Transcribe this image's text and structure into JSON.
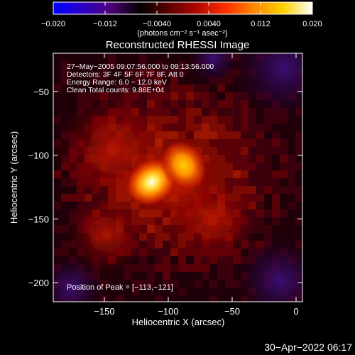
{
  "colorbar": {
    "ticks": [
      {
        "value": -0.02,
        "label": "−0.020"
      },
      {
        "value": -0.012,
        "label": "−0.012"
      },
      {
        "value": -0.004,
        "label": "−0.0040"
      },
      {
        "value": 0.004,
        "label": "0.0040"
      },
      {
        "value": 0.012,
        "label": "0.012"
      },
      {
        "value": 0.02,
        "label": "0.020"
      }
    ],
    "range": [
      -0.02,
      0.02
    ],
    "unit_label": "(photons cm⁻² s⁻¹ asec⁻²)",
    "colors": [
      "#0000ff",
      "#2b00c8",
      "#4f0078",
      "#000000",
      "#5a0000",
      "#b00800",
      "#ff3000",
      "#ff8a00",
      "#ffd100",
      "#ffffff"
    ]
  },
  "chart_data": {
    "type": "heatmap",
    "title": "Reconstructed RHESSI Image",
    "xlabel": "Heliocentric X (arcsec)",
    "ylabel": "Heliocentric Y (arcsec)",
    "xlim": [
      -190,
      5
    ],
    "ylim": [
      -215,
      -20
    ],
    "xticks": [
      {
        "value": -150,
        "label": "−150"
      },
      {
        "value": -100,
        "label": "−100"
      },
      {
        "value": -50,
        "label": "−50"
      },
      {
        "value": 0,
        "label": "0"
      }
    ],
    "yticks": [
      {
        "value": -50,
        "label": "−50"
      },
      {
        "value": -100,
        "label": "−100"
      },
      {
        "value": -150,
        "label": "−150"
      },
      {
        "value": -200,
        "label": "−200"
      }
    ],
    "annotations": [
      "27−May−2005 09:07:56.000 to 09:13:56.000",
      "Detectors: 3F 4F 5F 6F 7F 8F, Att 0",
      "Energy Range: 6.0 − 12.0 keV",
      "Clean    Total counts: 9.86E+04"
    ],
    "peak": {
      "x": -113,
      "y": -121,
      "label": "Position of Peak = [−113,−121]"
    },
    "sources": [
      {
        "x": -113,
        "y": -121,
        "intensity": 0.02
      },
      {
        "x": -88,
        "y": -108,
        "intensity": 0.013
      }
    ]
  },
  "footer": {
    "date": "30−Apr−2022 06:17"
  }
}
